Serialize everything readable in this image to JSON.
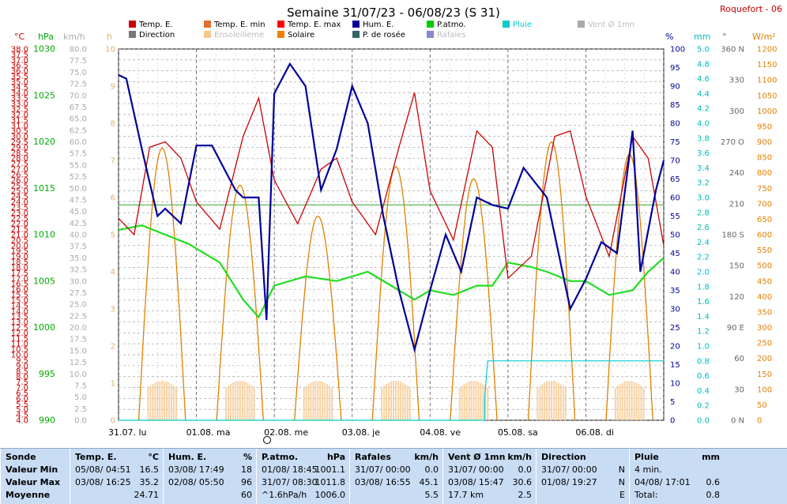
{
  "title": "Semaine 31/07/23 - 06/08/23 (S 31)",
  "station": "Roquefort - 06",
  "colors": {
    "temp": "#cc0000",
    "hum": "#000099",
    "patm": "#22dd22",
    "sun": "#e08000",
    "dew": "#336666",
    "gust": "#8888dd",
    "rain": "#00cccc",
    "wind": "#aaaaaa",
    "bg": "#ffffff"
  },
  "legend": [
    {
      "label": "Temp. E.",
      "color": "#cc0000",
      "muted": false
    },
    {
      "label": "Temp. E. min",
      "color": "#e07030",
      "muted": false
    },
    {
      "label": "Temp. E. max",
      "color": "#ff0000",
      "muted": false
    },
    {
      "label": "Hum. E.",
      "color": "#000099",
      "muted": false
    },
    {
      "label": "P.atmo.",
      "color": "#00cc00",
      "muted": false
    },
    {
      "label": "Pluie",
      "color": "#00cccc",
      "muted": false
    },
    {
      "label": "Vent Ø 1mn",
      "color": "#aaaaaa",
      "muted": true
    },
    {
      "label": "Direction",
      "color": "#777777",
      "muted": false
    },
    {
      "label": "Ensoleilleme",
      "color": "#f4c890",
      "muted": true
    },
    {
      "label": "Solaire",
      "color": "#f08000",
      "muted": false
    },
    {
      "label": "P. de rosée",
      "color": "#336666",
      "muted": false
    },
    {
      "label": "Rafales",
      "color": "#8888cc",
      "muted": true
    }
  ],
  "chart_data": {
    "type": "line",
    "x_labels": [
      "31.07. lu",
      "01.08. ma",
      "02.08. me",
      "03.08. je",
      "04.08. ve",
      "05.08. sa",
      "06.08. di"
    ],
    "axes": {
      "temp": {
        "unit": "°C",
        "min": 4.0,
        "max": 38.0,
        "step": 0.5
      },
      "patm": {
        "unit": "hPa",
        "min": 990,
        "max": 1030,
        "ticks": [
          990,
          995,
          1000,
          1005,
          1010,
          1015,
          1020,
          1025,
          1030
        ]
      },
      "wind": {
        "unit": "km/h",
        "min": 0,
        "max": 80,
        "step": 2.5
      },
      "sun": {
        "unit": "h",
        "min": 0,
        "max": 10,
        "step": 1
      },
      "hum": {
        "unit": "%",
        "min": 0,
        "max": 100,
        "step": 5
      },
      "rain": {
        "unit": "mm",
        "min": 0,
        "max": 5,
        "step": 0.2
      },
      "dir": {
        "unit": "°",
        "labels": [
          "0 N",
          "30",
          "60",
          "90 E",
          "120",
          "150",
          "180 S",
          "210",
          "240",
          "270 O",
          "300",
          "330",
          "360 N"
        ]
      },
      "solar": {
        "unit": "W/m²",
        "min": 0,
        "max": 1200,
        "step": 50
      }
    },
    "series": [
      {
        "name": "Temp. E.",
        "axis": "temp",
        "x": [
          0,
          0.2,
          0.4,
          0.6,
          0.8,
          1.0,
          1.3,
          1.6,
          1.8,
          2.0,
          2.3,
          2.6,
          2.8,
          3.0,
          3.3,
          3.6,
          3.8,
          4.0,
          4.3,
          4.6,
          4.8,
          5.0,
          5.3,
          5.6,
          5.8,
          6.0,
          6.3,
          6.6,
          6.8,
          7.0
        ],
        "values": [
          22.5,
          21.0,
          29.0,
          29.5,
          28.0,
          24.0,
          21.5,
          30.0,
          33.5,
          26.0,
          22.0,
          27.0,
          28.0,
          24.0,
          21.0,
          29.0,
          34.0,
          25.0,
          20.5,
          30.5,
          29.0,
          17.0,
          19.0,
          30.0,
          30.5,
          24.5,
          19.0,
          30.0,
          28.0,
          20.0
        ]
      },
      {
        "name": "Hum. E.",
        "axis": "hum",
        "x": [
          0,
          0.1,
          0.3,
          0.5,
          0.6,
          0.8,
          1.0,
          1.2,
          1.5,
          1.6,
          1.8,
          1.9,
          2.0,
          2.2,
          2.4,
          2.6,
          2.8,
          3.0,
          3.2,
          3.4,
          3.6,
          3.8,
          4.0,
          4.2,
          4.4,
          4.6,
          4.8,
          5.0,
          5.2,
          5.5,
          5.8,
          6.0,
          6.2,
          6.4,
          6.6,
          6.7,
          6.9,
          7.0
        ],
        "values": [
          93,
          92,
          73,
          55,
          57,
          53,
          74,
          74,
          62,
          60,
          60,
          27,
          88,
          96,
          90,
          62,
          73,
          90,
          80,
          55,
          35,
          19,
          35,
          50,
          40,
          60,
          58,
          57,
          68,
          60,
          30,
          38,
          48,
          45,
          78,
          40,
          62,
          70
        ]
      },
      {
        "name": "P.atmo.",
        "axis": "patm",
        "x": [
          0,
          0.3,
          0.6,
          0.9,
          1.3,
          1.6,
          1.8,
          2.0,
          2.4,
          2.8,
          3.2,
          3.6,
          3.8,
          4.0,
          4.3,
          4.6,
          4.8,
          5.0,
          5.3,
          5.5,
          5.8,
          6.0,
          6.3,
          6.6,
          6.8,
          7.0
        ],
        "values": [
          1010.5,
          1011.0,
          1010.0,
          1009.0,
          1007.0,
          1003.0,
          1001.1,
          1004.5,
          1005.5,
          1005.0,
          1006.0,
          1004.0,
          1003.0,
          1004.0,
          1003.5,
          1004.5,
          1004.5,
          1007.0,
          1006.5,
          1006.0,
          1005.0,
          1005.0,
          1003.5,
          1004.0,
          1006.0,
          1007.5
        ]
      },
      {
        "name": "Pluie",
        "axis": "rain",
        "x": [
          0,
          4.7,
          4.7,
          4.74,
          4.78,
          4.78,
          7.0
        ],
        "values": [
          0,
          0,
          0.3,
          0.8,
          0.8,
          0.8,
          0.8
        ]
      }
    ],
    "reference_line": {
      "axis": "patm",
      "value": 1013.2,
      "color": "#33aa33"
    },
    "solar_peaks": [
      0.56,
      1.56,
      2.56,
      3.56,
      4.56,
      5.56,
      6.56
    ],
    "solar_peak_values": [
      880,
      760,
      660,
      820,
      780,
      900,
      860
    ]
  },
  "stats": {
    "sonde": {
      "title": "Sonde",
      "rows": [
        "Valeur Min",
        "Valeur Max",
        "Moyenne"
      ]
    },
    "temp": {
      "title": "Temp. E.",
      "unit": "°C",
      "rows": [
        [
          "05/08/ 04:51",
          "16.5"
        ],
        [
          "03/08/ 16:25",
          "35.2"
        ],
        [
          "",
          "24.71"
        ]
      ]
    },
    "hum": {
      "title": "Hum. E.",
      "unit": "%",
      "rows": [
        [
          "03/08/ 17:49",
          "18"
        ],
        [
          "02/08/ 05:50",
          "96"
        ],
        [
          "",
          "60"
        ]
      ]
    },
    "patm": {
      "title": "P.atmo.",
      "unit": "hPa",
      "rows": [
        [
          "01/08/ 18:45",
          "1001.1"
        ],
        [
          "31/07/ 08:30",
          "1011.8"
        ],
        [
          "^1.6hPa/h",
          "1006.0"
        ]
      ]
    },
    "rafales": {
      "title": "Rafales",
      "unit": "km/h",
      "rows": [
        [
          "31/07/ 00:00",
          "0.0"
        ],
        [
          "03/08/ 16:55",
          "45.1"
        ],
        [
          "",
          "5.5"
        ]
      ]
    },
    "vent": {
      "title": "Vent Ø 1mn",
      "unit": "km/h",
      "rows": [
        [
          "31/07/ 00:00",
          "0.0"
        ],
        [
          "03/08/ 15:47",
          "30.6"
        ],
        [
          "17.7 km",
          "2.5"
        ]
      ]
    },
    "direction": {
      "title": "Direction",
      "unit": "",
      "rows": [
        [
          "31/07/ 00:00",
          "N"
        ],
        [
          "01/08/ 19:27",
          "N"
        ],
        [
          "",
          "E"
        ]
      ]
    },
    "pluie": {
      "title": "Pluie",
      "unit": "mm",
      "rows": [
        [
          "4 min.",
          ""
        ],
        [
          "04/08/ 17:01",
          "0.6"
        ],
        [
          "Total:",
          "0.8"
        ]
      ]
    }
  }
}
